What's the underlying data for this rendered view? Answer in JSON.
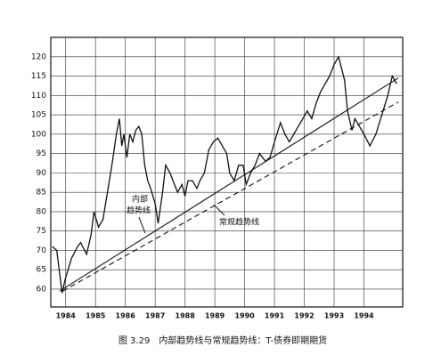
{
  "chart_data": {
    "type": "line",
    "caption": "图 3.29　内部趋势线与常规趋势线：T-债券即期期货",
    "annotations": [
      "内部",
      "趋势线",
      "常规趋势线"
    ],
    "xlim": [
      1984,
      1995.8
    ],
    "ylim": [
      55.4,
      125
    ],
    "xticks": [
      {
        "value": 1984.5,
        "label": "1984"
      },
      {
        "value": 1985.5,
        "label": "1985"
      },
      {
        "value": 1986.5,
        "label": "1986"
      },
      {
        "value": 1987.5,
        "label": "1987"
      },
      {
        "value": 1988.5,
        "label": "1988"
      },
      {
        "value": 1989.5,
        "label": "1989"
      },
      {
        "value": 1990.5,
        "label": "1990"
      },
      {
        "value": 1991.5,
        "label": "1991"
      },
      {
        "value": 1992.5,
        "label": "1992"
      },
      {
        "value": 1993.5,
        "label": "1993"
      },
      {
        "value": 1994.5,
        "label": "1994"
      }
    ],
    "yticks": [
      60,
      65,
      70,
      75,
      80,
      85,
      90,
      95,
      100,
      105,
      110,
      115,
      120
    ],
    "grid": true,
    "series": [
      {
        "color": "#111111",
        "x": [
          1984.05,
          1984.2,
          1984.3,
          1984.38,
          1984.5,
          1984.7,
          1984.9,
          1985.0,
          1985.2,
          1985.35,
          1985.45,
          1985.6,
          1985.75,
          1985.9,
          1986.05,
          1986.2,
          1986.3,
          1986.38,
          1986.45,
          1986.55,
          1986.65,
          1986.75,
          1986.85,
          1986.95,
          1987.05,
          1987.15,
          1987.25,
          1987.35,
          1987.5,
          1987.6,
          1987.75,
          1987.85,
          1988.0,
          1988.1,
          1988.25,
          1988.4,
          1988.5,
          1988.6,
          1988.75,
          1988.9,
          1989.0,
          1989.15,
          1989.3,
          1989.45,
          1989.6,
          1989.75,
          1989.9,
          1990.0,
          1990.15,
          1990.3,
          1990.45,
          1990.55,
          1990.7,
          1990.85,
          1991.0,
          1991.2,
          1991.35,
          1991.5,
          1991.7,
          1991.85,
          1992.0,
          1992.15,
          1992.3,
          1992.45,
          1992.6,
          1992.75,
          1992.9,
          1993.05,
          1993.2,
          1993.35,
          1993.5,
          1993.65,
          1993.75,
          1993.85,
          1993.95,
          1994.1,
          1994.2,
          1994.35,
          1994.5,
          1994.7,
          1994.9,
          1995.1,
          1995.3,
          1995.45,
          1995.6
        ],
        "values": [
          71,
          70,
          64,
          59,
          63,
          68,
          71,
          72,
          69,
          74,
          80,
          76,
          78,
          85,
          92,
          100,
          104,
          97,
          100,
          94,
          100,
          98,
          101,
          102,
          100,
          92,
          88,
          86,
          82,
          77,
          85,
          92,
          90,
          88,
          85,
          87,
          84,
          88,
          88,
          86,
          88,
          90,
          96,
          98,
          99,
          97,
          95,
          90,
          88,
          92,
          92,
          87,
          90,
          92,
          95,
          93,
          94,
          98,
          103,
          100,
          98,
          100,
          102,
          104,
          106,
          104,
          108,
          111,
          113,
          115,
          118,
          120,
          117,
          114,
          106,
          101,
          104,
          102,
          100,
          97,
          100,
          105,
          110,
          115,
          113
        ]
      }
    ],
    "trendlines": [
      {
        "dashed": false,
        "x": [
          1984.3,
          1995.65
        ],
        "values": [
          59.5,
          114.5
        ]
      },
      {
        "dashed": true,
        "x": [
          1984.4,
          1995.65
        ],
        "values": [
          59.5,
          108.3
        ]
      }
    ]
  }
}
